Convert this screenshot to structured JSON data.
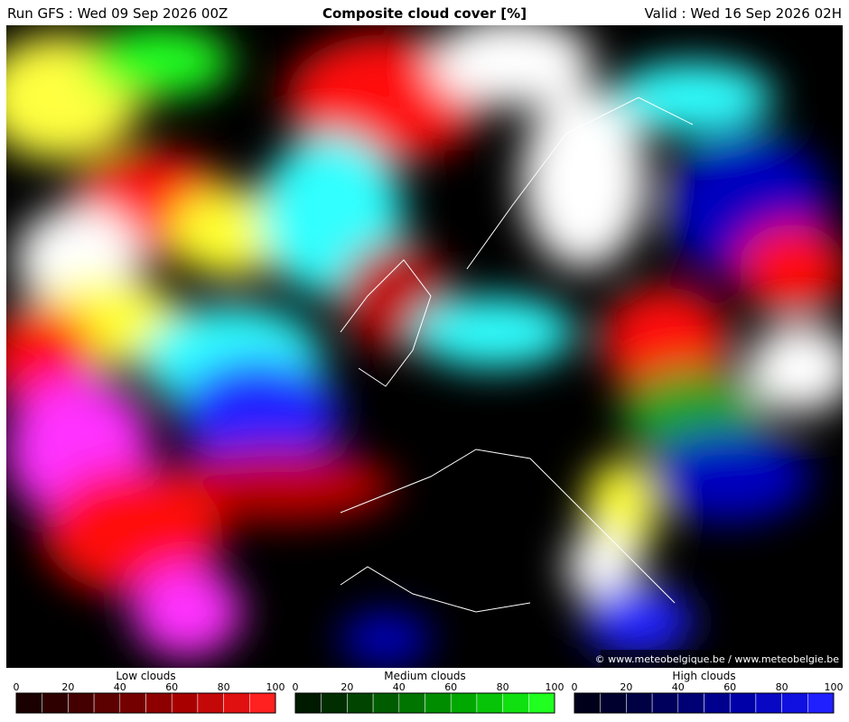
{
  "header": {
    "run": "Run GFS : Wed 09 Sep 2026 00Z",
    "title": "Composite cloud cover [%]",
    "valid": "Valid : Wed 16 Sep 2026 02H"
  },
  "copyright": "© www.meteobelgique.be / www.meteobelgie.be",
  "legends": [
    {
      "title": "Low clouds",
      "ticks": [
        0,
        20,
        40,
        60,
        80,
        100
      ],
      "colors": [
        "#1a0000",
        "#2e0000",
        "#440000",
        "#5c0000",
        "#750000",
        "#8e0000",
        "#a80000",
        "#c40808",
        "#e01010",
        "#ff2020"
      ]
    },
    {
      "title": "Medium clouds",
      "ticks": [
        0,
        20,
        40,
        60,
        80,
        100
      ],
      "colors": [
        "#001a00",
        "#002e00",
        "#004400",
        "#005c00",
        "#007500",
        "#008e00",
        "#00a800",
        "#08c408",
        "#10e010",
        "#20ff20"
      ]
    },
    {
      "title": "High clouds",
      "ticks": [
        0,
        20,
        40,
        60,
        80,
        100
      ],
      "colors": [
        "#00001a",
        "#00002e",
        "#000044",
        "#00005c",
        "#000075",
        "#00008e",
        "#0000a8",
        "#0808c4",
        "#1010e0",
        "#2020ff"
      ]
    }
  ]
}
